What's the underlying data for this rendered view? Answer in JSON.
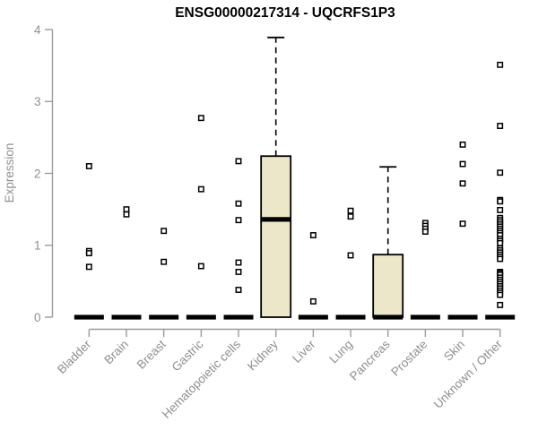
{
  "title": "ENSG00000217314 - UQCRFS1P3",
  "chart_data": {
    "type": "boxplot",
    "title": "ENSG00000217314 - UQCRFS1P3",
    "xlabel": "",
    "ylabel": "Expression",
    "ylim": [
      0,
      4
    ],
    "yticks": [
      0,
      1,
      2,
      3,
      4
    ],
    "grid": false,
    "legend": "none",
    "categories": [
      "Bladder",
      "Brain",
      "Breast",
      "Gastric",
      "Hematopoietic cells",
      "Kidney",
      "Liver",
      "Lung",
      "Pancreas",
      "Prostate",
      "Skin",
      "Unknown / Other"
    ],
    "series": [
      {
        "category": "Bladder",
        "q1": 0,
        "median": 0,
        "q3": 0,
        "whisker_low": 0,
        "whisker_high": 0,
        "outliers": [
          2.1,
          0.92,
          0.89,
          0.7
        ]
      },
      {
        "category": "Brain",
        "q1": 0,
        "median": 0,
        "q3": 0,
        "whisker_low": 0,
        "whisker_high": 0,
        "outliers": [
          1.5,
          1.43
        ]
      },
      {
        "category": "Breast",
        "q1": 0,
        "median": 0,
        "q3": 0,
        "whisker_low": 0,
        "whisker_high": 0,
        "outliers": [
          1.2,
          0.77
        ]
      },
      {
        "category": "Gastric",
        "q1": 0,
        "median": 0,
        "q3": 0,
        "whisker_low": 0,
        "whisker_high": 0,
        "outliers": [
          2.77,
          1.78,
          0.71
        ]
      },
      {
        "category": "Hematopoietic cells",
        "q1": 0,
        "median": 0,
        "q3": 0,
        "whisker_low": 0,
        "whisker_high": 0,
        "outliers": [
          2.17,
          1.58,
          1.35,
          0.76,
          0.63,
          0.38
        ]
      },
      {
        "category": "Kidney",
        "q1": 0,
        "median": 1.36,
        "q3": 2.24,
        "whisker_low": 0,
        "whisker_high": 3.89,
        "outliers": []
      },
      {
        "category": "Liver",
        "q1": 0,
        "median": 0,
        "q3": 0,
        "whisker_low": 0,
        "whisker_high": 0,
        "outliers": [
          1.14,
          0.22
        ]
      },
      {
        "category": "Lung",
        "q1": 0,
        "median": 0,
        "q3": 0,
        "whisker_low": 0,
        "whisker_high": 0,
        "outliers": [
          1.48,
          1.4,
          0.86
        ]
      },
      {
        "category": "Pancreas",
        "q1": 0,
        "median": 0,
        "q3": 0.87,
        "whisker_low": 0,
        "whisker_high": 2.09,
        "outliers": []
      },
      {
        "category": "Prostate",
        "q1": 0,
        "median": 0,
        "q3": 0,
        "whisker_low": 0,
        "whisker_high": 0,
        "outliers": [
          1.31,
          1.27,
          1.23,
          1.19
        ]
      },
      {
        "category": "Skin",
        "q1": 0,
        "median": 0,
        "q3": 0,
        "whisker_low": 0,
        "whisker_high": 0,
        "outliers": [
          2.4,
          2.13,
          1.86,
          1.3
        ]
      },
      {
        "category": "Unknown / Other",
        "q1": 0,
        "median": 0,
        "q3": 0,
        "whisker_low": 0,
        "whisker_high": 0,
        "outliers": [
          3.51,
          2.66,
          2.01,
          1.63,
          1.61,
          1.49,
          1.38,
          1.35,
          1.32,
          1.29,
          1.26,
          1.23,
          1.2,
          1.17,
          1.14,
          1.09,
          1.06,
          1.03,
          0.96,
          0.93,
          0.9,
          0.87,
          0.84,
          0.81,
          0.63,
          0.61,
          0.59,
          0.55,
          0.52,
          0.49,
          0.46,
          0.43,
          0.4,
          0.37,
          0.34,
          0.31,
          0.17
        ]
      }
    ],
    "colors": {
      "box_fill": "#ece7c9",
      "box_stroke": "#000000",
      "median": "#000000",
      "outlier_stroke": "#000000",
      "outlier_fill": "#ffffff",
      "axis": "#9b9b9b",
      "tick_label": "#8f8f8f",
      "title": "#000000",
      "background": "#ffffff"
    }
  }
}
